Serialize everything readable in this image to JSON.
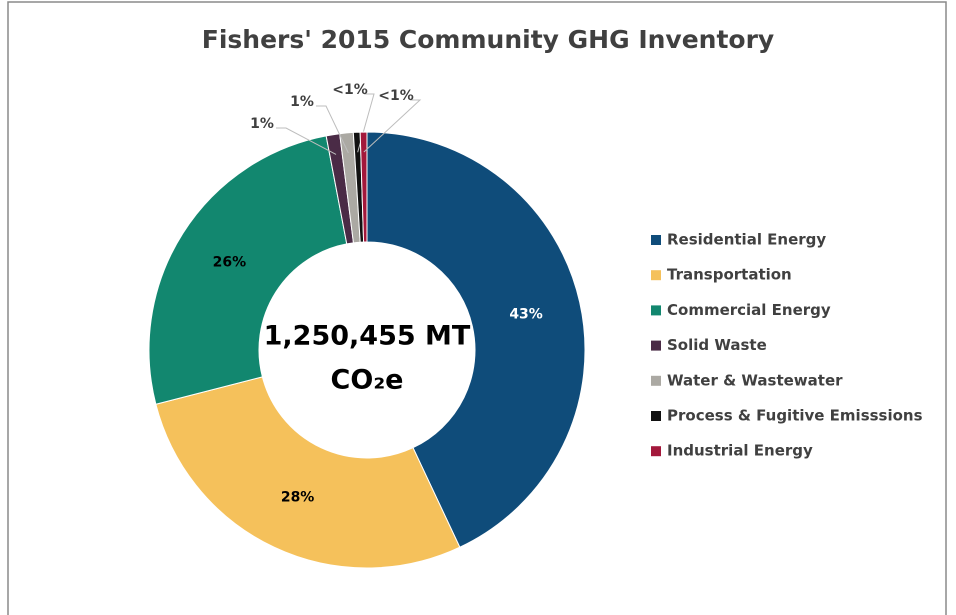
{
  "chart_data": {
    "type": "donut",
    "title": "Fishers' 2015 Community GHG Inventory",
    "center_label": [
      "1,250,455 MT",
      "CO₂e"
    ],
    "categories": [
      "Residential Energy",
      "Transportation",
      "Commercial Energy",
      "Solid Waste",
      "Water & Wastewater",
      "Process & Fugitive Emisssions",
      "Industrial Energy"
    ],
    "values": [
      43,
      28,
      26,
      1,
      1,
      0.5,
      0.5
    ],
    "value_labels": [
      "43%",
      "28%",
      "26%",
      "1%",
      "1%",
      "<1%",
      "<1%"
    ],
    "colors": [
      "#0f4c7a",
      "#f5c15b",
      "#12876f",
      "#4a2b46",
      "#aba9a3",
      "#111111",
      "#a3183b"
    ],
    "legend": "right"
  }
}
